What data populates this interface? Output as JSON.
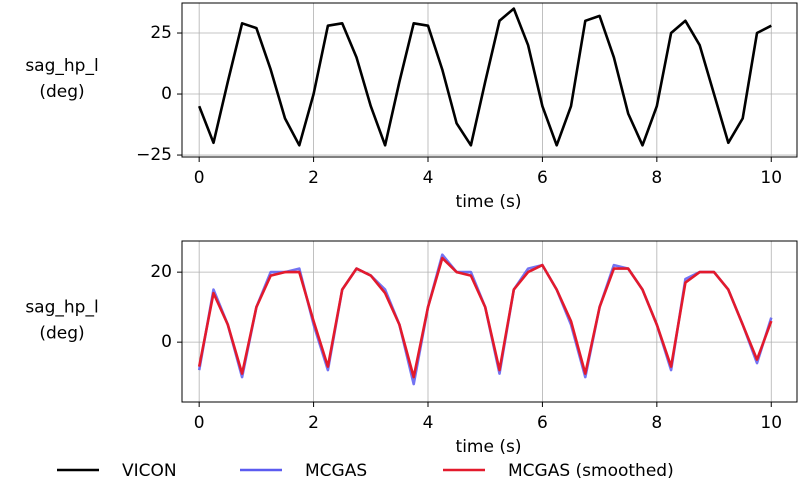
{
  "chart_data": [
    {
      "type": "line",
      "ylabel": [
        "sag_hp_l",
        "(deg)"
      ],
      "xlabel": "time (s)",
      "x": [
        0,
        0.25,
        0.5,
        0.75,
        1,
        1.25,
        1.5,
        1.75,
        2,
        2.25,
        2.5,
        2.75,
        3,
        3.25,
        3.5,
        3.75,
        4,
        4.25,
        4.5,
        4.75,
        5,
        5.25,
        5.5,
        5.75,
        6,
        6.25,
        6.5,
        6.75,
        7,
        7.25,
        7.5,
        7.75,
        8,
        8.25,
        8.5,
        8.75,
        9,
        9.25,
        9.5,
        9.75,
        10
      ],
      "series": [
        {
          "name": "VICON",
          "color": "#000000",
          "values": [
            -5,
            -20,
            5,
            29,
            27,
            10,
            -10,
            -21,
            0,
            28,
            29,
            15,
            -5,
            -21,
            5,
            29,
            28,
            10,
            -12,
            -21,
            5,
            30,
            35,
            20,
            -5,
            -21,
            -5,
            30,
            32,
            15,
            -8,
            -21,
            -5,
            25,
            30,
            20,
            0,
            -20,
            -10,
            25,
            28
          ]
        }
      ],
      "xlim": [
        -0.3,
        10.45
      ],
      "ylim": [
        -25.8,
        37.3
      ],
      "xticks": [
        0,
        2,
        4,
        6,
        8,
        10
      ],
      "yticks": [
        {
          "value": -25,
          "label": "−25"
        },
        0,
        25
      ],
      "grid": true
    },
    {
      "type": "line",
      "ylabel": [
        "sag_hp_l",
        "(deg)"
      ],
      "xlabel": "time (s)",
      "x": [
        0,
        0.25,
        0.5,
        0.75,
        1,
        1.25,
        1.5,
        1.75,
        2,
        2.25,
        2.5,
        2.75,
        3,
        3.25,
        3.5,
        3.75,
        4,
        4.25,
        4.5,
        4.75,
        5,
        5.25,
        5.5,
        5.75,
        6,
        6.25,
        6.5,
        6.75,
        7,
        7.25,
        7.5,
        7.75,
        8,
        8.25,
        8.5,
        8.75,
        9,
        9.25,
        9.5,
        9.75,
        10
      ],
      "series": [
        {
          "name": "MCGAS",
          "color": "#5b5bf0",
          "values": [
            -8,
            15,
            5,
            -10,
            10,
            20,
            20,
            21,
            5,
            -8,
            15,
            21,
            19,
            15,
            5,
            -12,
            10,
            25,
            20,
            20,
            10,
            -9,
            15,
            21,
            22,
            15,
            5,
            -10,
            10,
            22,
            21,
            15,
            5,
            -8,
            18,
            20,
            20,
            15,
            5,
            -6,
            7
          ]
        },
        {
          "name": "MCGAS (smoothed)",
          "color": "#e31a2c",
          "values": [
            -7,
            14,
            5,
            -9,
            10,
            19,
            20,
            20,
            6,
            -7,
            15,
            21,
            19,
            14,
            5,
            -10,
            10,
            24,
            20,
            19,
            10,
            -8,
            15,
            20,
            22,
            15,
            6,
            -9,
            10,
            21,
            21,
            15,
            5,
            -7,
            17,
            20,
            20,
            15,
            5,
            -5,
            6
          ]
        }
      ],
      "xlim": [
        -0.3,
        10.45
      ],
      "ylim": [
        -17.1,
        28.9
      ],
      "xticks": [
        0,
        2,
        4,
        6,
        8,
        10
      ],
      "yticks": [
        0,
        20
      ],
      "grid": true
    }
  ]
}
